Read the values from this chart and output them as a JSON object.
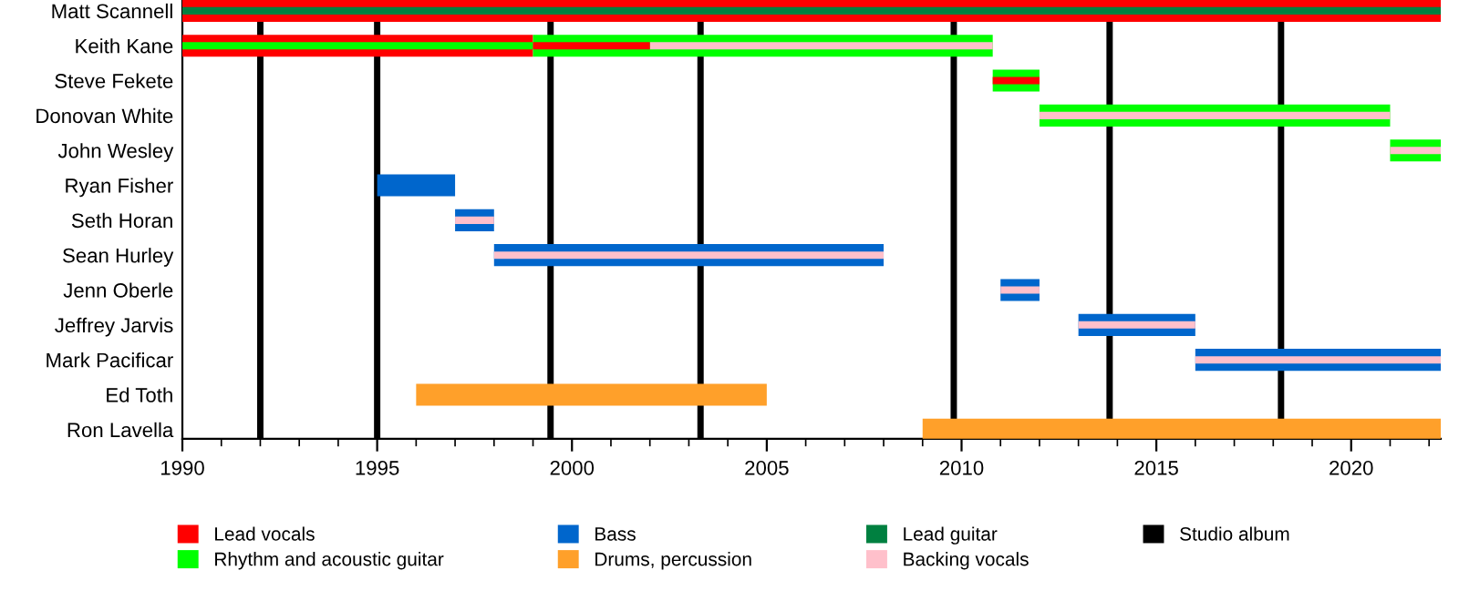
{
  "chart_data": {
    "type": "bar",
    "orientation": "horizontal",
    "categories": [
      "Matt Scannell",
      "Keith Kane",
      "Steve Fekete",
      "Donovan White",
      "John Wesley",
      "Ryan Fisher",
      "Seth Horan",
      "Sean Hurley",
      "Jenn Oberle",
      "Jeffrey Jarvis",
      "Mark Pacificar",
      "Ed Toth",
      "Ron Lavella"
    ],
    "xlim": [
      1990,
      2022.3
    ],
    "xticks": [
      1990,
      {
        "value": 1991,
        "label": null
      },
      {
        "value": 1992,
        "label": null
      },
      {
        "value": 1993,
        "label": null
      },
      {
        "value": 1994,
        "label": null
      },
      1995,
      {
        "value": 1996,
        "label": null
      },
      {
        "value": 1997,
        "label": null
      },
      {
        "value": 1998,
        "label": null
      },
      {
        "value": 1999,
        "label": null
      },
      2000,
      {
        "value": 2001,
        "label": null
      },
      {
        "value": 2002,
        "label": null
      },
      {
        "value": 2003,
        "label": null
      },
      {
        "value": 2004,
        "label": null
      },
      2005,
      {
        "value": 2006,
        "label": null
      },
      {
        "value": 2007,
        "label": null
      },
      {
        "value": 2008,
        "label": null
      },
      {
        "value": 2009,
        "label": null
      },
      2010,
      {
        "value": 2011,
        "label": null
      },
      {
        "value": 2012,
        "label": null
      },
      {
        "value": 2013,
        "label": null
      },
      {
        "value": 2014,
        "label": null
      },
      2015,
      {
        "value": 2016,
        "label": null
      },
      {
        "value": 2017,
        "label": null
      },
      {
        "value": 2018,
        "label": null
      },
      {
        "value": 2019,
        "label": null
      },
      2020,
      {
        "value": 2021,
        "label": null
      },
      {
        "value": 2022,
        "label": null
      }
    ],
    "series": [
      {
        "name": "Lead vocals",
        "color": "#ff0000",
        "base": [
          1990,
          1990,
          null,
          null,
          null,
          null,
          null,
          null,
          null,
          null,
          null,
          null,
          null
        ],
        "values": [
          32.3,
          9,
          null,
          null,
          null,
          null,
          null,
          null,
          null,
          null,
          null,
          null,
          null
        ]
      },
      {
        "name": "Rhythm and acoustic guitar",
        "color": "#00ff00",
        "base": [
          null,
          1999,
          2010.8,
          2012,
          2021,
          null,
          null,
          null,
          null,
          null,
          null,
          null,
          null
        ],
        "values": [
          null,
          11.8,
          1.2,
          9,
          1.3,
          null,
          null,
          null,
          null,
          null,
          null,
          null,
          null
        ]
      },
      {
        "name": "Bass",
        "color": "#0066cc",
        "base": [
          null,
          null,
          null,
          null,
          null,
          1995,
          1997,
          1998,
          2011,
          2013,
          2016,
          null,
          null
        ],
        "values": [
          null,
          null,
          null,
          null,
          null,
          2,
          1,
          10,
          1,
          3,
          6.3,
          null,
          null
        ]
      },
      {
        "name": "Drums, percussion",
        "color": "#ffa02a",
        "base": [
          null,
          null,
          null,
          null,
          null,
          null,
          null,
          null,
          null,
          null,
          null,
          1996,
          2009
        ],
        "values": [
          null,
          null,
          null,
          null,
          null,
          null,
          null,
          null,
          null,
          null,
          null,
          9,
          13.3
        ]
      },
      {
        "name": "Lead guitar",
        "color": "#008040",
        "base": [
          1990,
          null,
          null,
          null,
          null,
          null,
          null,
          null,
          null,
          null,
          null,
          null,
          null
        ],
        "values": [
          32.3,
          null,
          null,
          null,
          null,
          null,
          null,
          null,
          null,
          null,
          null,
          null,
          null
        ]
      },
      {
        "name": "Backing vocals",
        "color": "#ffc0cb",
        "base": [
          null,
          2002,
          null,
          2012,
          2021,
          null,
          1997,
          1998,
          2011,
          2013,
          2016,
          null,
          null
        ],
        "values": [
          null,
          8.8,
          null,
          9,
          1.3,
          null,
          1,
          10,
          1,
          3,
          6.3,
          null,
          null
        ]
      },
      {
        "color": "#00ff00",
        "base": [
          null,
          1990,
          null,
          null,
          null,
          null,
          null,
          null,
          null,
          null,
          null,
          null,
          null
        ],
        "values": [
          null,
          9,
          null,
          null,
          null,
          null,
          null,
          null,
          null,
          null,
          null,
          null,
          null
        ]
      },
      {
        "color": "#ff0000",
        "base": [
          null,
          1999,
          2010.8,
          null,
          null,
          null,
          null,
          null,
          null,
          null,
          null,
          null,
          null
        ],
        "values": [
          null,
          3,
          1.2,
          null,
          null,
          null,
          null,
          null,
          null,
          null,
          null,
          null,
          null
        ]
      }
    ],
    "ref_lines": [
      {
        "axis": "x",
        "value": 1992,
        "label": "Studio album",
        "color": "#000000"
      },
      {
        "axis": "x",
        "value": 1995,
        "color": "#000000"
      },
      {
        "axis": "x",
        "value": 1999.45,
        "color": "#000000"
      },
      {
        "axis": "x",
        "value": 2003.3,
        "color": "#000000"
      },
      {
        "axis": "x",
        "value": 2009.8,
        "color": "#000000"
      },
      {
        "axis": "x",
        "value": 2013.8,
        "color": "#000000"
      },
      {
        "axis": "x",
        "value": 2018.2,
        "color": "#000000"
      }
    ],
    "legend": "bottom",
    "grid": false
  }
}
